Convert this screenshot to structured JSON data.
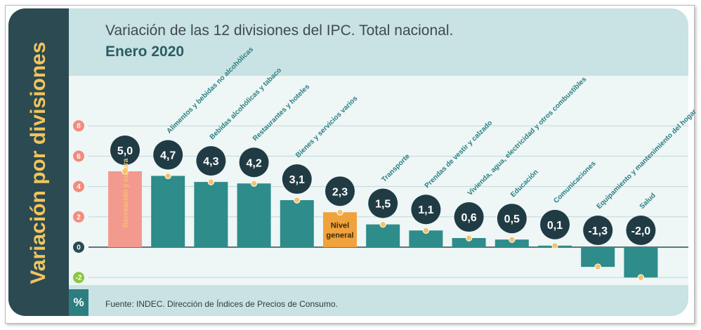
{
  "side_title": "Variación por divisiones",
  "unit_label": "%",
  "title_line1": "Variación de las 12 divisiones del IPC. Total nacional.",
  "title_line2": "Enero 2020",
  "source": "Fuente: INDEC. Dirección de Índices de Precios de Consumo.",
  "colors": {
    "bar": "#2e8c8a",
    "highlight_bar": "#f39a8e",
    "nivel_bar": "#f0a23c",
    "bubble": "#203b44",
    "dot": "#f5c36b",
    "label": "#2a7f80",
    "tick_badge": "#f48b7b",
    "tick_badge_neg": "#8cc63f",
    "tick_badge_zero": "#2a4a52"
  },
  "chart_data": {
    "type": "bar",
    "title": "Variación de las 12 divisiones del IPC. Total nacional.",
    "subtitle": "Enero 2020",
    "ylabel": "Variación por divisiones",
    "unit": "%",
    "ylim": [
      -2,
      8
    ],
    "yticks": [
      "-2",
      "0",
      "2",
      "4",
      "6",
      "8"
    ],
    "grid": true,
    "categories": [
      "Recreación y cultura",
      "Alimentos y bebidas no alcohólicas",
      "Bebidas alcohólicas y tabaco",
      "Restaurantes y hoteles",
      "Bienes y servicios varios",
      "Nivel general",
      "Transporte",
      "Prendas de vestir y calzado",
      "Vivienda, agua, electricidad y otros combustibles",
      "Educación",
      "Comunicaciones",
      "Equipamiento y mantenimiento del hogar",
      "Salud"
    ],
    "values": [
      5.0,
      4.7,
      4.3,
      4.2,
      3.1,
      2.3,
      1.5,
      1.1,
      0.6,
      0.5,
      0.1,
      -1.3,
      -2.0
    ],
    "value_labels": [
      "5,0",
      "4,7",
      "4,3",
      "4,2",
      "3,1",
      "2,3",
      "1,5",
      "1,1",
      "0,6",
      "0,5",
      "0,1",
      "-1,3",
      "-2,0"
    ],
    "inbar_labels": {
      "0": "Recreación y cultura",
      "5": "Nivel general"
    }
  }
}
